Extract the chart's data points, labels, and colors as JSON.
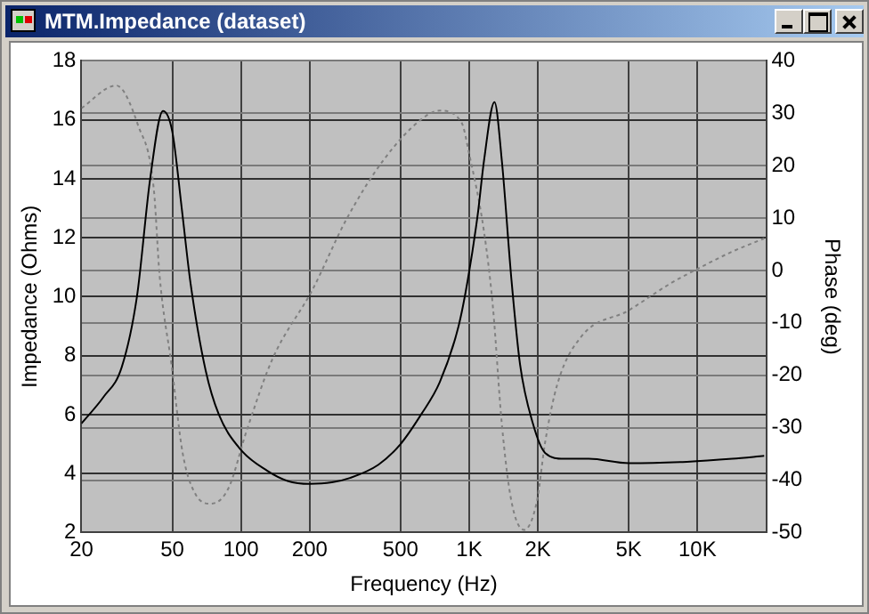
{
  "chart_data": {
    "type": "line",
    "title": "MTM.Impedance (dataset)",
    "xlabel": "Frequency (Hz)",
    "ylabel": "Impedance (Ohms)",
    "y2label": "Phase (deg)",
    "log": "x",
    "grid": true,
    "legend": false,
    "marker": "none",
    "xlim": [
      20,
      20000
    ],
    "xticks": [
      20,
      50,
      100,
      200,
      500,
      {
        "value": 1000,
        "label": "1K"
      },
      {
        "value": 2000,
        "label": "2K"
      },
      {
        "value": 5000,
        "label": "5K"
      },
      {
        "value": 10000,
        "label": "10K"
      }
    ],
    "ylim": [
      2,
      18
    ],
    "yticks": [
      2,
      4,
      6,
      8,
      10,
      12,
      14,
      16,
      18
    ],
    "y2lim": [
      -50,
      40
    ],
    "y2ticks": [
      -50,
      -40,
      -30,
      -20,
      -10,
      0,
      10,
      20,
      30,
      40
    ],
    "series": [
      {
        "color": "#000000",
        "line_style": "solid",
        "x": [
          20,
          25,
          30,
          35,
          40,
          45.5,
          50,
          55,
          60,
          70,
          80,
          100,
          130,
          160,
          200,
          250,
          300,
          400,
          500,
          615,
          743,
          898,
          987,
          1090,
          1160,
          1290,
          1390,
          1530,
          1670,
          1900,
          2150,
          2600,
          3340,
          5000,
          9000,
          14200,
          19600
        ],
        "values": [
          5.7,
          6.6,
          7.6,
          10,
          14,
          16.3,
          15.6,
          13,
          10.5,
          7.5,
          6,
          4.8,
          4.1,
          3.75,
          3.65,
          3.7,
          3.85,
          4.3,
          5,
          6,
          7.1,
          9,
          10.6,
          12.8,
          14.6,
          16.6,
          14.6,
          10.6,
          7.7,
          5.7,
          4.7,
          4.5,
          4.5,
          4.35,
          4.4,
          4.5,
          4.6
        ]
      },
      {
        "color": "#808080",
        "line_style": "dotted",
        "axis": "y2",
        "x": [
          20,
          28.4,
          35.4,
          41.5,
          44,
          49.6,
          55.6,
          63.4,
          73.8,
          88,
          106,
          137,
          206,
          290,
          420,
          615,
          743,
          926,
          1000,
          1160,
          1270,
          1390,
          1530,
          1740,
          1980,
          2150,
          2440,
          3100,
          5000,
          7600,
          10000,
          14200,
          19600
        ],
        "values": [
          31,
          35.3,
          27.7,
          15.5,
          -1,
          -18,
          -35,
          -42.8,
          -44.5,
          -41.6,
          -30.5,
          -17,
          -3.6,
          9.8,
          21,
          28.8,
          30.5,
          28.2,
          22.2,
          7.5,
          -7,
          -29.4,
          -44,
          -49.5,
          -44,
          -32.8,
          -21.5,
          -12.6,
          -7.6,
          -2.5,
          0.3,
          3.6,
          6.1
        ]
      }
    ]
  }
}
